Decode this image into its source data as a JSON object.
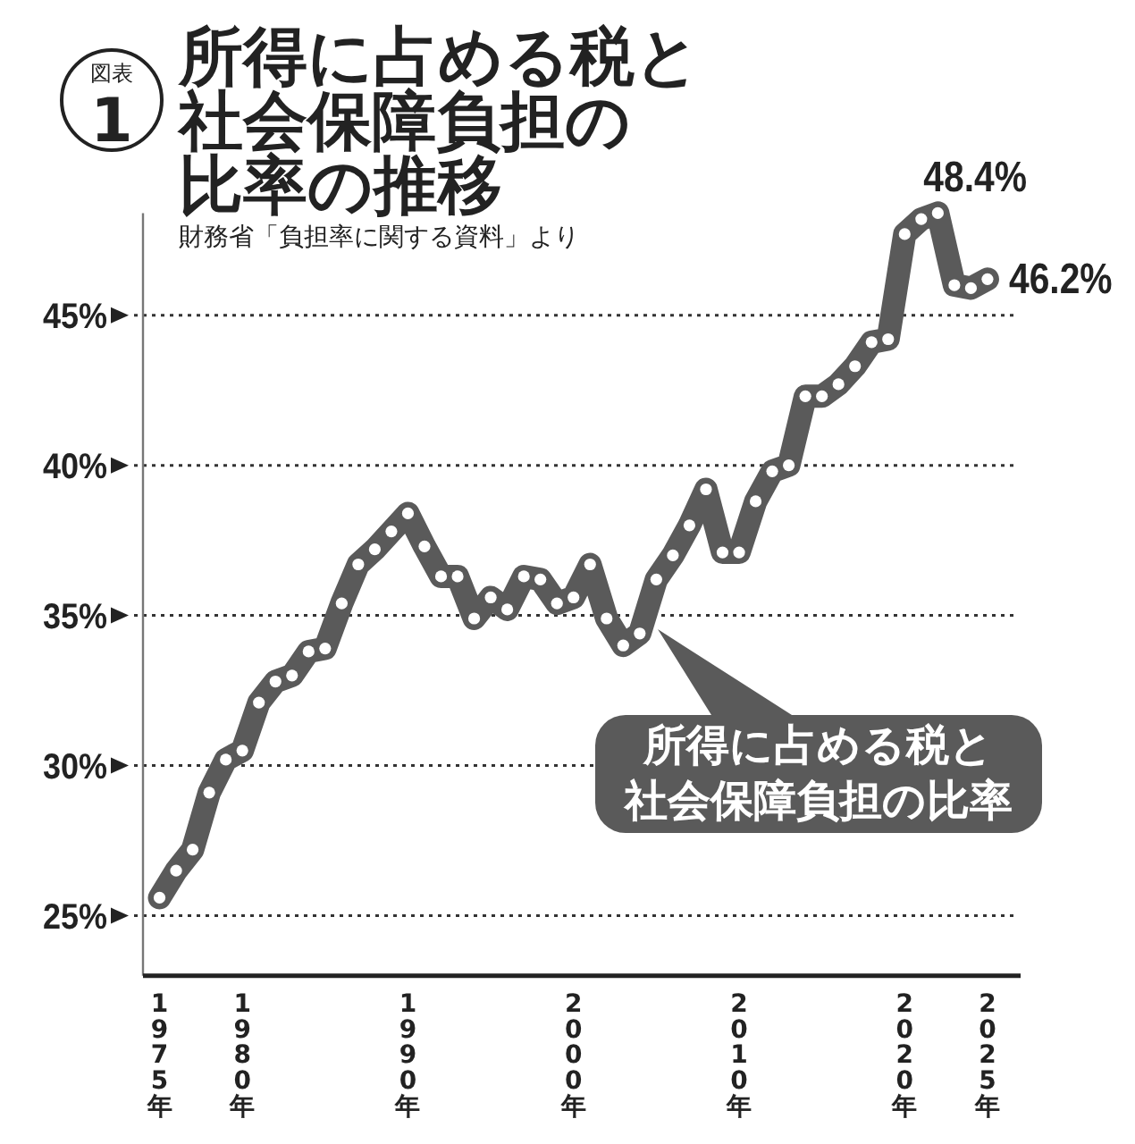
{
  "chart_data": {
    "type": "line",
    "title": "所得に占める税と社会保障負担の比率の推移",
    "annotations": [
      "図表",
      "1",
      "財務省「負担率に関する資料」より"
    ],
    "x": [
      1975,
      1976,
      1977,
      1978,
      1979,
      1980,
      1981,
      1982,
      1983,
      1984,
      1985,
      1986,
      1987,
      1988,
      1989,
      1990,
      1991,
      1992,
      1993,
      1994,
      1995,
      1996,
      1997,
      1998,
      1999,
      2000,
      2001,
      2002,
      2003,
      2004,
      2005,
      2006,
      2007,
      2008,
      2009,
      2010,
      2011,
      2012,
      2013,
      2014,
      2015,
      2016,
      2017,
      2018,
      2019,
      2020,
      2021,
      2022,
      2023,
      2024,
      2025
    ],
    "series": [
      {
        "name": "所得に占める税と社会保障負担の比率",
        "color": "#5a5a5a",
        "values": [
          25.6,
          26.5,
          27.2,
          29.1,
          30.2,
          30.5,
          32.1,
          32.8,
          33.0,
          33.8,
          33.9,
          35.4,
          36.7,
          37.2,
          37.8,
          38.4,
          37.3,
          36.3,
          36.3,
          34.9,
          35.6,
          35.2,
          36.3,
          36.2,
          35.4,
          35.6,
          36.7,
          34.9,
          34.0,
          34.4,
          36.2,
          37.0,
          38.0,
          39.2,
          37.1,
          37.1,
          38.8,
          39.8,
          40.0,
          42.3,
          42.3,
          42.7,
          43.3,
          44.1,
          44.2,
          47.7,
          48.2,
          48.4,
          46.0,
          45.9,
          46.2
        ],
        "value_labels": [
          null,
          null,
          null,
          null,
          null,
          null,
          null,
          null,
          null,
          null,
          null,
          null,
          null,
          null,
          null,
          null,
          null,
          null,
          null,
          null,
          null,
          null,
          null,
          null,
          null,
          null,
          null,
          null,
          null,
          null,
          null,
          null,
          null,
          null,
          null,
          null,
          null,
          null,
          null,
          null,
          null,
          null,
          null,
          null,
          null,
          null,
          null,
          "48.4%",
          null,
          null,
          "46.2%"
        ]
      }
    ],
    "xlim": [
      1974,
      2027
    ],
    "xticks": [
      {
        "value": 1975,
        "label": "1975年"
      },
      {
        "value": 1980,
        "label": "1980年"
      },
      {
        "value": 1990,
        "label": "1990年"
      },
      {
        "value": 2000,
        "label": "2000年"
      },
      {
        "value": 2010,
        "label": "2010年"
      },
      {
        "value": 2020,
        "label": "2020年"
      },
      {
        "value": 2025,
        "label": "2025年"
      }
    ],
    "ylim": [
      23,
      48.4
    ],
    "yticks": [
      {
        "value": 25,
        "label": "25%"
      },
      {
        "value": 30,
        "label": "30%"
      },
      {
        "value": 35,
        "label": "35%"
      },
      {
        "value": 40,
        "label": "40%"
      },
      {
        "value": 45,
        "label": "45%"
      }
    ],
    "grid": "y",
    "marker": "circle",
    "line_style": "solid"
  }
}
